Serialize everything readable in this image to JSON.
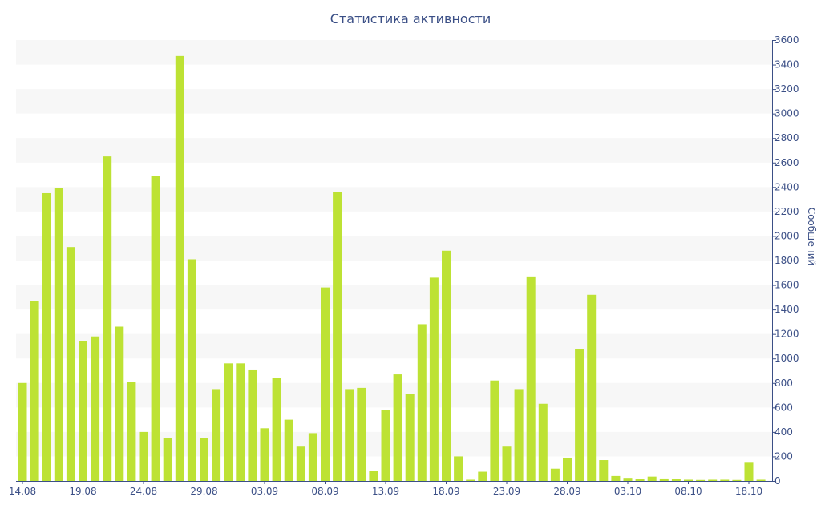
{
  "chart_data": {
    "type": "bar",
    "title": "Статистика активности",
    "ylabel": "Сообщений",
    "xlabel": "",
    "ylim": [
      0,
      3600
    ],
    "y_ticks": [
      0,
      200,
      400,
      600,
      800,
      1000,
      1200,
      1400,
      1600,
      1800,
      2000,
      2200,
      2400,
      2600,
      2800,
      3000,
      3200,
      3400,
      3600
    ],
    "y_axis_position": "right",
    "grid": "alternating horizontal bands",
    "x_tick_labels": [
      "14.08",
      "19.08",
      "24.08",
      "29.08",
      "03.09",
      "08.09",
      "13.09",
      "18.09",
      "23.09",
      "28.09",
      "03.10",
      "08.10",
      "18.10"
    ],
    "x_tick_label_bar_index": [
      0,
      5,
      10,
      15,
      20,
      25,
      30,
      35,
      40,
      45,
      50,
      55,
      60
    ],
    "categories": [
      "14.08",
      "15.08",
      "16.08",
      "17.08",
      "18.08",
      "19.08",
      "20.08",
      "21.08",
      "22.08",
      "23.08",
      "24.08",
      "25.08",
      "26.08",
      "27.08",
      "28.08",
      "29.08",
      "30.08",
      "31.08",
      "01.09",
      "02.09",
      "03.09",
      "04.09",
      "05.09",
      "06.09",
      "07.09",
      "08.09",
      "09.09",
      "10.09",
      "11.09",
      "12.09",
      "13.09",
      "14.09",
      "15.09",
      "16.09",
      "17.09",
      "18.09",
      "19.09",
      "20.09",
      "21.09",
      "22.09",
      "23.09",
      "24.09",
      "25.09",
      "26.09",
      "27.09",
      "28.09",
      "29.09",
      "30.09",
      "01.10",
      "02.10",
      "03.10",
      "04.10",
      "05.10",
      "06.10",
      "07.10",
      "08.10",
      "09.10",
      "10.10",
      "11.10",
      "12.10",
      "18.10",
      "19.10"
    ],
    "values": [
      800,
      1470,
      2350,
      2390,
      1910,
      1140,
      1180,
      2650,
      1260,
      810,
      400,
      2490,
      350,
      3470,
      1810,
      350,
      750,
      960,
      960,
      910,
      430,
      840,
      500,
      280,
      390,
      1580,
      2360,
      750,
      760,
      80,
      580,
      870,
      710,
      1280,
      1660,
      1880,
      200,
      10,
      75,
      820,
      280,
      750,
      1670,
      630,
      100,
      190,
      1080,
      1520,
      170,
      40,
      25,
      15,
      35,
      20,
      15,
      10,
      8,
      10,
      10,
      8,
      155,
      10
    ],
    "colors": {
      "bar": "#bde234",
      "band": "#f7f7f7",
      "text": "#3b4f86",
      "axis": "#3b4f86"
    }
  }
}
